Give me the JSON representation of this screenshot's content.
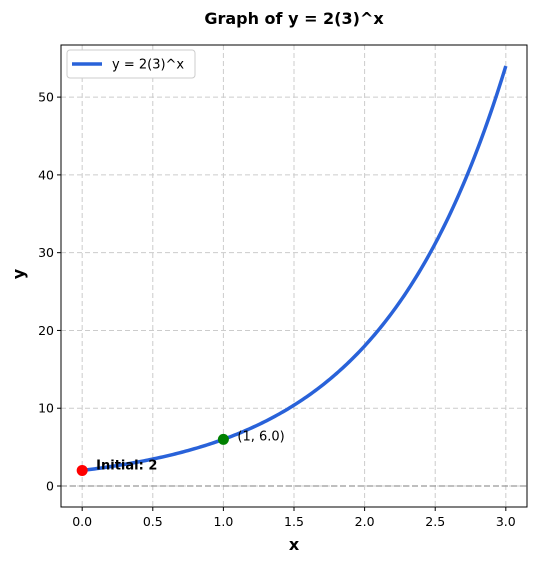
{
  "chart_data": {
    "type": "line",
    "title": "Graph of y = 2(3)^x",
    "xlabel": "x",
    "ylabel": "y",
    "xlim": [
      -0.15,
      3.15
    ],
    "ylim": [
      -2.7,
      56.7
    ],
    "xticks": [
      0.0,
      0.5,
      1.0,
      1.5,
      2.0,
      2.5,
      3.0
    ],
    "xtick_labels": [
      "0.0",
      "0.5",
      "1.0",
      "1.5",
      "2.0",
      "2.5",
      "3.0"
    ],
    "yticks": [
      0,
      10,
      20,
      30,
      40,
      50
    ],
    "ytick_labels": [
      "0",
      "10",
      "20",
      "30",
      "40",
      "50"
    ],
    "grid": true,
    "legend_position": "top-left",
    "series": [
      {
        "name": "y = 2(3)^x",
        "color": "#2962d9",
        "function": {
          "a": 2,
          "b": 3
        },
        "x_range": [
          0,
          3
        ]
      }
    ],
    "reference_line": {
      "y": 0,
      "color": "#999999",
      "style": "dashed"
    },
    "points": [
      {
        "x": 0,
        "y": 2,
        "color": "#ff0000",
        "label": "Initial: 2",
        "bold": true
      },
      {
        "x": 1,
        "y": 6,
        "color": "#008000",
        "label": "(1, 6.0)",
        "bold": false
      }
    ]
  }
}
